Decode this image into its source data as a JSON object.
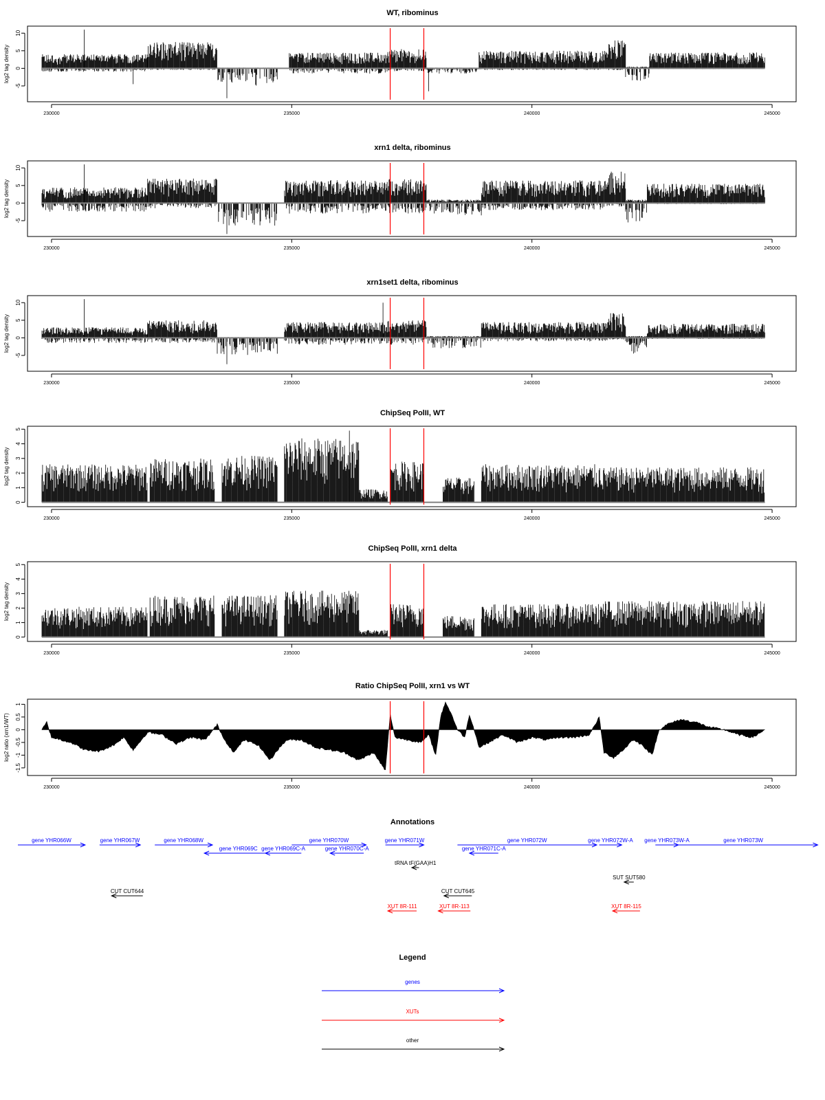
{
  "chart_data": [
    {
      "type": "bar",
      "title": "WT, ribominus",
      "xlabel": "",
      "ylabel": "log2 tag density",
      "xlim": [
        229500,
        245500
      ],
      "ylim": [
        -9.5,
        12
      ],
      "yticks": [
        -5,
        0,
        5,
        10
      ],
      "xticks": [
        230000,
        235000,
        240000,
        245000
      ],
      "markers": [
        237050,
        237750
      ],
      "segments": [
        {
          "from": 229800,
          "to": 232000,
          "pos": 4,
          "neg": 1,
          "spikes": [
            {
              "x": 230680,
              "v": 11
            },
            {
              "x": 231700,
              "v": -4.5
            }
          ]
        },
        {
          "from": 232000,
          "to": 233450,
          "pos": 7.5,
          "neg": 0.5
        },
        {
          "from": 233450,
          "to": 234700,
          "pos": 0.2,
          "neg": 5.5,
          "spikes": [
            {
              "x": 233650,
              "v": -8.5
            }
          ]
        },
        {
          "from": 234700,
          "to": 234950,
          "pos": 0,
          "neg": 0
        },
        {
          "from": 234950,
          "to": 237000,
          "pos": 4.5,
          "neg": 1.5
        },
        {
          "from": 237000,
          "to": 237800,
          "pos": 5.5,
          "neg": 0.8,
          "spikes": [
            {
              "x": 237850,
              "v": -6.5
            }
          ]
        },
        {
          "from": 237800,
          "to": 238900,
          "pos": 0.2,
          "neg": 1.5
        },
        {
          "from": 238900,
          "to": 241600,
          "pos": 5,
          "neg": 0.5
        },
        {
          "from": 241600,
          "to": 241950,
          "pos": 8,
          "neg": 0.5
        },
        {
          "from": 241950,
          "to": 242450,
          "pos": 0.5,
          "neg": 3.5
        },
        {
          "from": 242450,
          "to": 244850,
          "pos": 4.5,
          "neg": 0.2
        }
      ]
    },
    {
      "type": "bar",
      "title": "xrn1 delta, ribominus",
      "xlabel": "",
      "ylabel": "log2 tag density",
      "xlim": [
        229500,
        245500
      ],
      "ylim": [
        -9.5,
        12
      ],
      "yticks": [
        -5,
        0,
        5,
        10
      ],
      "xticks": [
        230000,
        235000,
        240000,
        245000
      ],
      "markers": [
        237050,
        237750
      ],
      "segments": [
        {
          "from": 229800,
          "to": 232000,
          "pos": 4.5,
          "neg": 2.5,
          "spikes": [
            {
              "x": 230680,
              "v": 11
            }
          ]
        },
        {
          "from": 232000,
          "to": 233450,
          "pos": 7,
          "neg": 1.5
        },
        {
          "from": 233450,
          "to": 234700,
          "pos": 0.2,
          "neg": 6.5,
          "spikes": [
            {
              "x": 233650,
              "v": -8.8
            }
          ]
        },
        {
          "from": 234700,
          "to": 234850,
          "pos": 0,
          "neg": 0
        },
        {
          "from": 234850,
          "to": 237000,
          "pos": 6.5,
          "neg": 3
        },
        {
          "from": 237000,
          "to": 237800,
          "pos": 7,
          "neg": 3
        },
        {
          "from": 237800,
          "to": 238950,
          "pos": 1,
          "neg": 3.5
        },
        {
          "from": 238950,
          "to": 241600,
          "pos": 6.5,
          "neg": 2
        },
        {
          "from": 241600,
          "to": 241950,
          "pos": 9,
          "neg": 1
        },
        {
          "from": 241950,
          "to": 242400,
          "pos": 1,
          "neg": 5.5
        },
        {
          "from": 242400,
          "to": 244850,
          "pos": 5.5,
          "neg": 0.3
        }
      ]
    },
    {
      "type": "bar",
      "title": "xrn1set1 delta, ribominus",
      "xlabel": "",
      "ylabel": "log2 tag density",
      "xlim": [
        229500,
        245500
      ],
      "ylim": [
        -9.5,
        12
      ],
      "yticks": [
        -5,
        0,
        5,
        10
      ],
      "xticks": [
        230000,
        235000,
        240000,
        245000
      ],
      "markers": [
        237050,
        237750
      ],
      "segments": [
        {
          "from": 229800,
          "to": 232000,
          "pos": 3,
          "neg": 1.5,
          "spikes": [
            {
              "x": 230680,
              "v": 11
            }
          ]
        },
        {
          "from": 232000,
          "to": 233450,
          "pos": 5,
          "neg": 1.5
        },
        {
          "from": 233450,
          "to": 234700,
          "pos": 0.2,
          "neg": 5,
          "spikes": [
            {
              "x": 233650,
              "v": -7.5
            }
          ]
        },
        {
          "from": 234700,
          "to": 234850,
          "pos": 0,
          "neg": 0
        },
        {
          "from": 234850,
          "to": 237000,
          "pos": 4.5,
          "neg": 2
        },
        {
          "from": 237000,
          "to": 237800,
          "pos": 5,
          "neg": 2,
          "spikes": [
            {
              "x": 236900,
              "v": 10
            }
          ]
        },
        {
          "from": 237800,
          "to": 238950,
          "pos": 0.5,
          "neg": 3
        },
        {
          "from": 238950,
          "to": 241600,
          "pos": 4.5,
          "neg": 1
        },
        {
          "from": 241600,
          "to": 241950,
          "pos": 7,
          "neg": 0.5
        },
        {
          "from": 241950,
          "to": 242400,
          "pos": 0.5,
          "neg": 4.5
        },
        {
          "from": 242400,
          "to": 244850,
          "pos": 4,
          "neg": 0.3
        }
      ]
    },
    {
      "type": "bar",
      "title": "ChipSeq PolII, WT",
      "xlabel": "",
      "ylabel": "log2 tag density",
      "xlim": [
        229500,
        245500
      ],
      "ylim": [
        -0.3,
        5.2
      ],
      "yticks": [
        0,
        1,
        2,
        3,
        4,
        5
      ],
      "xticks": [
        230000,
        235000,
        240000,
        245000
      ],
      "markers": [
        237050,
        237750
      ],
      "segments": [
        {
          "from": 229800,
          "to": 232000,
          "pos": 2.6,
          "neg": 0
        },
        {
          "from": 232050,
          "to": 233400,
          "pos": 3.0,
          "neg": 0
        },
        {
          "from": 233550,
          "to": 234700,
          "pos": 3.2,
          "neg": 0
        },
        {
          "from": 234850,
          "to": 236400,
          "pos": 4.4,
          "neg": 0,
          "spikes": [
            {
              "x": 236200,
              "v": 4.9
            }
          ]
        },
        {
          "from": 236400,
          "to": 237000,
          "pos": 0.9,
          "neg": 0
        },
        {
          "from": 237050,
          "to": 237750,
          "pos": 2.8,
          "neg": 0
        },
        {
          "from": 238150,
          "to": 238800,
          "pos": 1.7,
          "neg": 0
        },
        {
          "from": 238950,
          "to": 241450,
          "pos": 2.6,
          "neg": 0
        },
        {
          "from": 241450,
          "to": 244850,
          "pos": 2.4,
          "neg": 0
        }
      ]
    },
    {
      "type": "bar",
      "title": "ChipSeq PolII, xrn1 delta",
      "xlabel": "",
      "ylabel": "log2 tag density",
      "xlim": [
        229500,
        245500
      ],
      "ylim": [
        -0.3,
        5.2
      ],
      "yticks": [
        0,
        1,
        2,
        3,
        4,
        5
      ],
      "xticks": [
        230000,
        235000,
        240000,
        245000
      ],
      "markers": [
        237050,
        237750
      ],
      "segments": [
        {
          "from": 229800,
          "to": 232000,
          "pos": 2.1,
          "neg": 0
        },
        {
          "from": 232050,
          "to": 233400,
          "pos": 2.9,
          "neg": 0
        },
        {
          "from": 233550,
          "to": 234700,
          "pos": 2.9,
          "neg": 0
        },
        {
          "from": 234850,
          "to": 236400,
          "pos": 3.2,
          "neg": 0
        },
        {
          "from": 236400,
          "to": 237000,
          "pos": 0.5,
          "neg": 0
        },
        {
          "from": 237050,
          "to": 237750,
          "pos": 2.3,
          "neg": 0
        },
        {
          "from": 238150,
          "to": 238800,
          "pos": 1.5,
          "neg": 0
        },
        {
          "from": 238950,
          "to": 241450,
          "pos": 2.3,
          "neg": 0
        },
        {
          "from": 241450,
          "to": 244850,
          "pos": 2.5,
          "neg": 0
        }
      ]
    },
    {
      "type": "area",
      "title": "Ratio ChipSeq PolII, xrn1 vs WT",
      "xlabel": "",
      "ylabel": "log2 ratio (xrn1/WT)",
      "xlim": [
        229500,
        245500
      ],
      "ylim": [
        -1.8,
        1.2
      ],
      "yticks": [
        -1.5,
        -1.0,
        -0.5,
        0.0,
        0.5,
        1.0
      ],
      "baseline": 0,
      "xticks": [
        230000,
        235000,
        240000,
        245000
      ],
      "markers": [
        237050,
        237750
      ],
      "points": [
        [
          229800,
          0.0
        ],
        [
          229900,
          0.3
        ],
        [
          230000,
          -0.3
        ],
        [
          230400,
          -0.5
        ],
        [
          230700,
          -0.8
        ],
        [
          231000,
          -0.85
        ],
        [
          231300,
          -0.6
        ],
        [
          231500,
          -0.3
        ],
        [
          231700,
          -0.8
        ],
        [
          232000,
          -0.1
        ],
        [
          232300,
          -0.2
        ],
        [
          232600,
          -0.55
        ],
        [
          232900,
          -0.3
        ],
        [
          233200,
          -0.4
        ],
        [
          233450,
          0.2
        ],
        [
          233600,
          -0.4
        ],
        [
          233800,
          -0.9
        ],
        [
          234000,
          -0.4
        ],
        [
          234300,
          -0.6
        ],
        [
          234550,
          -1.2
        ],
        [
          234700,
          -0.8
        ],
        [
          234900,
          -0.4
        ],
        [
          235200,
          -0.4
        ],
        [
          235500,
          -0.7
        ],
        [
          235800,
          -0.8
        ],
        [
          236100,
          -0.9
        ],
        [
          236400,
          -1.2
        ],
        [
          236700,
          -0.9
        ],
        [
          236950,
          -1.6
        ],
        [
          237050,
          0.6
        ],
        [
          237150,
          -0.3
        ],
        [
          237400,
          -0.4
        ],
        [
          237700,
          -0.5
        ],
        [
          237850,
          -0.2
        ],
        [
          238000,
          -1.0
        ],
        [
          238100,
          0.5
        ],
        [
          238200,
          1.1
        ],
        [
          238350,
          0.5
        ],
        [
          238450,
          0.0
        ],
        [
          238600,
          -0.3
        ],
        [
          238700,
          0.6
        ],
        [
          238800,
          0.0
        ],
        [
          238900,
          -0.7
        ],
        [
          239100,
          -0.5
        ],
        [
          239400,
          -0.2
        ],
        [
          239700,
          -0.5
        ],
        [
          240000,
          -0.3
        ],
        [
          240300,
          -0.4
        ],
        [
          240600,
          -0.3
        ],
        [
          240900,
          -0.3
        ],
        [
          241200,
          -0.2
        ],
        [
          241400,
          0.5
        ],
        [
          241500,
          -0.9
        ],
        [
          241700,
          -1.1
        ],
        [
          241900,
          -0.8
        ],
        [
          242100,
          -0.4
        ],
        [
          242300,
          -0.6
        ],
        [
          242500,
          -1.0
        ],
        [
          242650,
          0.0
        ],
        [
          242800,
          0.2
        ],
        [
          243100,
          0.4
        ],
        [
          243400,
          0.3
        ],
        [
          243700,
          0.1
        ],
        [
          244000,
          0.0
        ],
        [
          244300,
          -0.2
        ],
        [
          244600,
          -0.3
        ],
        [
          244850,
          0.0
        ]
      ]
    }
  ],
  "annotations": {
    "title": "Annotations",
    "xlim": [
      229500,
      245500
    ],
    "colors": {
      "genes": "#0000ff",
      "xuts": "#ff0000",
      "other": "#000000"
    },
    "items": [
      {
        "label": "gene YHR066W",
        "from": 229300,
        "to": 230700,
        "dir": "right",
        "kind": "genes",
        "row": 0
      },
      {
        "label": "gene YHR067W",
        "from": 231000,
        "to": 231850,
        "dir": "right",
        "kind": "genes",
        "row": 0
      },
      {
        "label": "gene YHR068W",
        "from": 232150,
        "to": 233350,
        "dir": "right",
        "kind": "genes",
        "row": 0
      },
      {
        "label": "gene YHR069C",
        "from": 233180,
        "to": 234600,
        "dir": "left",
        "kind": "genes",
        "row": 1
      },
      {
        "label": "gene YHR069C-A",
        "from": 234450,
        "to": 235200,
        "dir": "left",
        "kind": "genes",
        "row": 1
      },
      {
        "label": "gene YHR070W",
        "from": 235000,
        "to": 236550,
        "dir": "right",
        "kind": "genes",
        "row": 0
      },
      {
        "label": "gene YHR070C-A",
        "from": 235800,
        "to": 236500,
        "dir": "left",
        "kind": "genes",
        "row": 1
      },
      {
        "label": "gene YHR071W",
        "from": 236950,
        "to": 237750,
        "dir": "right",
        "kind": "genes",
        "row": 0
      },
      {
        "label": "gene YHR071C-A",
        "from": 238700,
        "to": 239300,
        "dir": "left",
        "kind": "genes",
        "row": 1
      },
      {
        "label": "gene YHR072W",
        "from": 238450,
        "to": 241350,
        "dir": "right",
        "kind": "genes",
        "row": 0
      },
      {
        "label": "gene YHR072W-A",
        "from": 241400,
        "to": 241870,
        "dir": "right",
        "kind": "genes",
        "row": 0
      },
      {
        "label": "gene YHR073W-A",
        "from": 242570,
        "to": 243050,
        "dir": "right",
        "kind": "genes",
        "row": 0
      },
      {
        "label": "gene YHR073W",
        "from": 242850,
        "to": 245950,
        "dir": "right",
        "kind": "genes",
        "row": 0
      },
      {
        "label": "tRNA tF(GAA)H1",
        "from": 237500,
        "to": 237650,
        "dir": "left",
        "kind": "other",
        "row": 2
      },
      {
        "label": "SUT SUT580",
        "from": 241920,
        "to": 242120,
        "dir": "left",
        "kind": "other",
        "row": 3
      },
      {
        "label": "CUT CUT644",
        "from": 231250,
        "to": 231900,
        "dir": "left",
        "kind": "other",
        "row": 4
      },
      {
        "label": "CUT CUT645",
        "from": 238170,
        "to": 238750,
        "dir": "left",
        "kind": "other",
        "row": 4
      },
      {
        "label": "XUT 8R-111",
        "from": 237000,
        "to": 237600,
        "dir": "left",
        "kind": "xuts",
        "row": 5
      },
      {
        "label": "XUT 8R-113",
        "from": 238050,
        "to": 238720,
        "dir": "left",
        "kind": "xuts",
        "row": 5
      },
      {
        "label": "XUT 8R-115",
        "from": 241680,
        "to": 242250,
        "dir": "left",
        "kind": "xuts",
        "row": 5
      }
    ]
  },
  "legend": {
    "title": "Legend",
    "entries": [
      {
        "label": "genes",
        "color": "#0000ff"
      },
      {
        "label": "XUTs",
        "color": "#ff0000"
      },
      {
        "label": "other",
        "color": "#000000"
      }
    ]
  }
}
